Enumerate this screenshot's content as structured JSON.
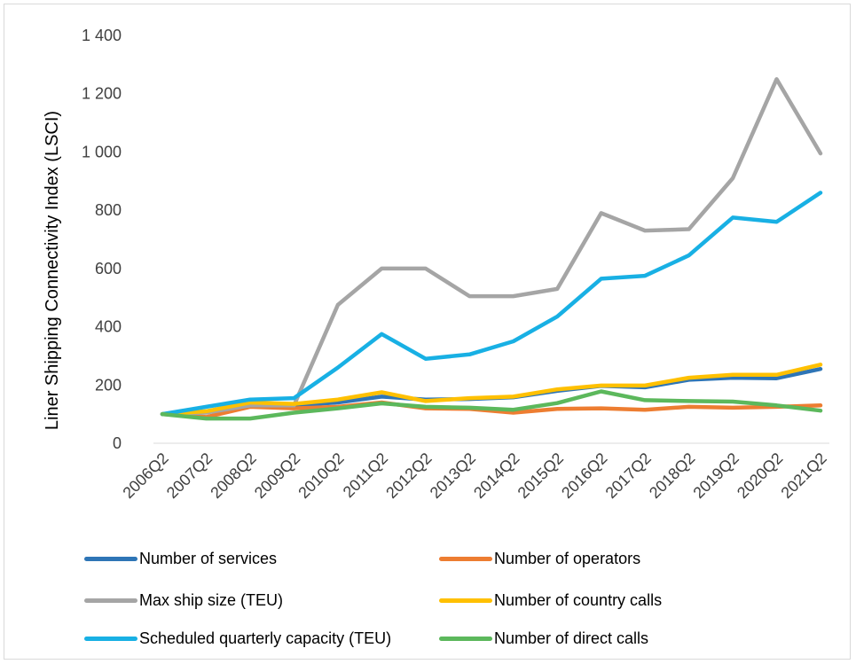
{
  "chart_data": {
    "type": "line",
    "ylabel": "Liner Shipping Connectivity Index (LSCI)",
    "xlabel": "",
    "title": "",
    "ylim": [
      0,
      1400
    ],
    "yticks": [
      0,
      200,
      400,
      600,
      800,
      1000,
      1200,
      1400
    ],
    "ytick_labels": [
      "0",
      "200",
      "400",
      "600",
      "800",
      "1 000",
      "1 200",
      "1 400"
    ],
    "categories": [
      "2006Q2",
      "2007Q2",
      "2008Q2",
      "2009Q2",
      "2010Q2",
      "2011Q2",
      "2012Q2",
      "2013Q2",
      "2014Q2",
      "2015Q2",
      "2016Q2",
      "2017Q2",
      "2018Q2",
      "2019Q2",
      "2020Q2",
      "2021Q2"
    ],
    "grid": false,
    "legend_position": "bottom",
    "series": [
      {
        "name": "Number of services",
        "color": "#2e75b6",
        "values": [
          100,
          108,
          140,
          130,
          140,
          160,
          150,
          152,
          158,
          180,
          197,
          192,
          218,
          225,
          223,
          255
        ]
      },
      {
        "name": "Number of operators",
        "color": "#ed7d31",
        "values": [
          100,
          90,
          125,
          120,
          125,
          140,
          120,
          118,
          105,
          118,
          120,
          115,
          125,
          122,
          125,
          130
        ]
      },
      {
        "name": "Max ship size (TEU)",
        "color": "#a5a5a5",
        "values": [
          100,
          105,
          130,
          130,
          475,
          600,
          600,
          505,
          505,
          530,
          790,
          730,
          735,
          910,
          1250,
          995
        ]
      },
      {
        "name": "Number of country calls",
        "color": "#ffc000",
        "values": [
          100,
          110,
          140,
          135,
          150,
          175,
          145,
          155,
          160,
          185,
          198,
          198,
          225,
          235,
          235,
          270
        ]
      },
      {
        "name": "Scheduled quarterly capacity (TEU)",
        "color": "#18b0e4",
        "values": [
          100,
          125,
          150,
          155,
          260,
          375,
          290,
          305,
          350,
          435,
          565,
          575,
          645,
          775,
          760,
          860
        ]
      },
      {
        "name": "Number of direct calls",
        "color": "#5cb85c",
        "values": [
          100,
          85,
          85,
          105,
          120,
          137,
          125,
          122,
          115,
          138,
          178,
          148,
          145,
          143,
          130,
          112
        ]
      }
    ]
  }
}
